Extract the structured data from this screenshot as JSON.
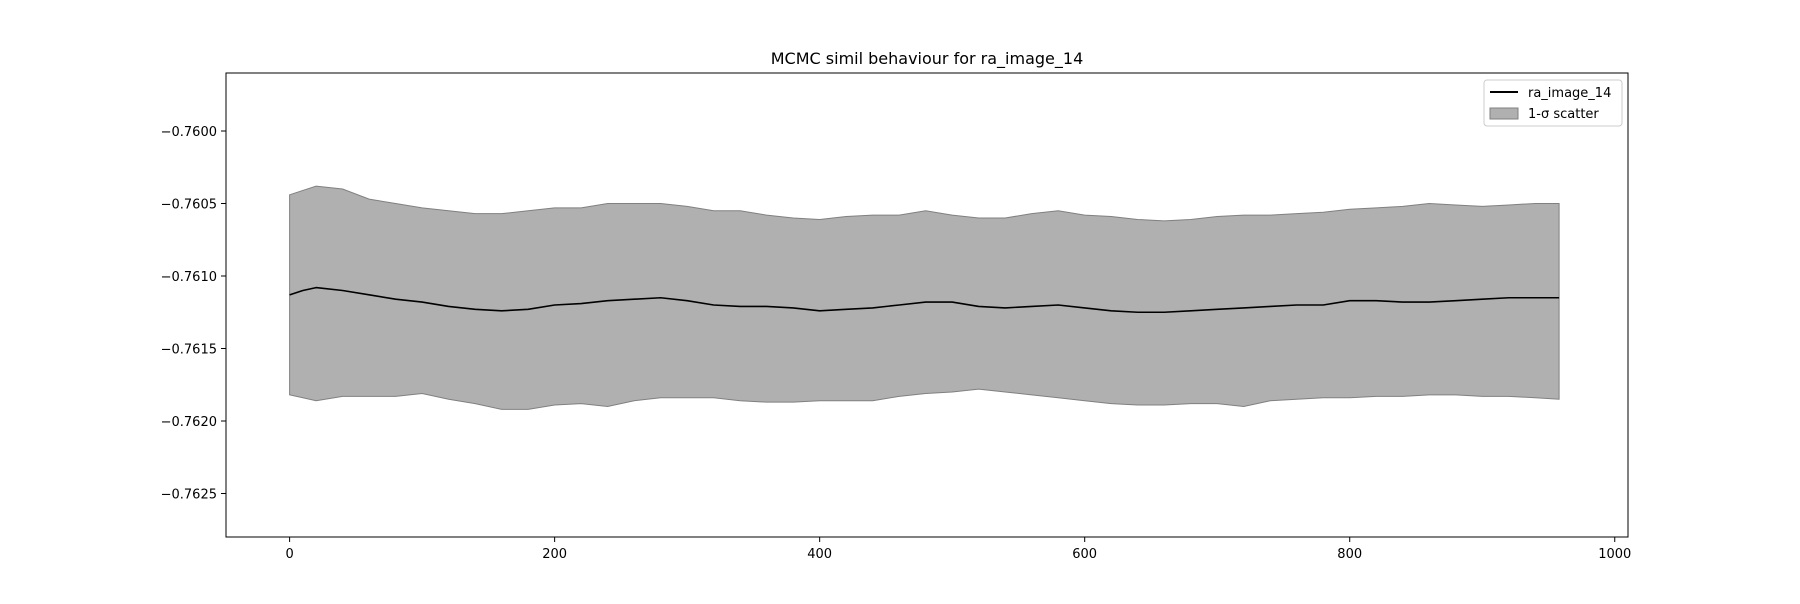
{
  "chart_data": {
    "type": "line",
    "title": "MCMC simil behaviour for ra_image_14",
    "xlabel": "",
    "ylabel": "",
    "xlim": [
      -48,
      1010
    ],
    "ylim": [
      -0.7628,
      -0.7596
    ],
    "x_ticks": [
      0,
      200,
      400,
      600,
      800,
      1000
    ],
    "x_tick_labels": [
      "0",
      "200",
      "400",
      "600",
      "800",
      "1000"
    ],
    "y_ticks": [
      -0.76,
      -0.7605,
      -0.761,
      -0.7615,
      -0.762,
      -0.7625
    ],
    "y_tick_labels": [
      "−0.7600",
      "−0.7605",
      "−0.7610",
      "−0.7615",
      "−0.7620",
      "−0.7625"
    ],
    "grid": false,
    "legend_position": "top-right",
    "series": [
      {
        "name": "ra_image_14",
        "kind": "line",
        "color": "#000000",
        "x": [
          0,
          10,
          20,
          40,
          60,
          80,
          100,
          120,
          140,
          160,
          180,
          200,
          220,
          240,
          260,
          280,
          300,
          320,
          340,
          360,
          380,
          400,
          420,
          440,
          460,
          480,
          500,
          520,
          540,
          560,
          580,
          600,
          620,
          640,
          660,
          680,
          700,
          720,
          740,
          760,
          780,
          800,
          820,
          840,
          860,
          880,
          900,
          920,
          940,
          958
        ],
        "y": [
          -0.76113,
          -0.7611,
          -0.76108,
          -0.7611,
          -0.76113,
          -0.76116,
          -0.76118,
          -0.76121,
          -0.76123,
          -0.76124,
          -0.76123,
          -0.7612,
          -0.76119,
          -0.76117,
          -0.76116,
          -0.76115,
          -0.76117,
          -0.7612,
          -0.76121,
          -0.76121,
          -0.76122,
          -0.76124,
          -0.76123,
          -0.76122,
          -0.7612,
          -0.76118,
          -0.76118,
          -0.76121,
          -0.76122,
          -0.76121,
          -0.7612,
          -0.76122,
          -0.76124,
          -0.76125,
          -0.76125,
          -0.76124,
          -0.76123,
          -0.76122,
          -0.76121,
          -0.7612,
          -0.7612,
          -0.76117,
          -0.76117,
          -0.76118,
          -0.76118,
          -0.76117,
          -0.76116,
          -0.76115,
          -0.76115,
          -0.76115
        ]
      },
      {
        "name": "1-σ scatter",
        "kind": "band",
        "color": "#b0b0b0",
        "edge_color": "#808080",
        "x": [
          0,
          10,
          20,
          40,
          60,
          80,
          100,
          120,
          140,
          160,
          180,
          200,
          220,
          240,
          260,
          280,
          300,
          320,
          340,
          360,
          380,
          400,
          420,
          440,
          460,
          480,
          500,
          520,
          540,
          560,
          580,
          600,
          620,
          640,
          660,
          680,
          700,
          720,
          740,
          760,
          780,
          800,
          820,
          840,
          860,
          880,
          900,
          920,
          940,
          958
        ],
        "upper": [
          -0.76044,
          -0.76041,
          -0.76038,
          -0.7604,
          -0.76047,
          -0.7605,
          -0.76053,
          -0.76055,
          -0.76057,
          -0.76057,
          -0.76055,
          -0.76053,
          -0.76053,
          -0.7605,
          -0.7605,
          -0.7605,
          -0.76052,
          -0.76055,
          -0.76055,
          -0.76058,
          -0.7606,
          -0.76061,
          -0.76059,
          -0.76058,
          -0.76058,
          -0.76055,
          -0.76058,
          -0.7606,
          -0.7606,
          -0.76057,
          -0.76055,
          -0.76058,
          -0.76059,
          -0.76061,
          -0.76062,
          -0.76061,
          -0.76059,
          -0.76058,
          -0.76058,
          -0.76057,
          -0.76056,
          -0.76054,
          -0.76053,
          -0.76052,
          -0.7605,
          -0.76051,
          -0.76052,
          -0.76051,
          -0.7605,
          -0.7605
        ],
        "lower": [
          -0.76182,
          -0.76184,
          -0.76186,
          -0.76183,
          -0.76183,
          -0.76183,
          -0.76181,
          -0.76185,
          -0.76188,
          -0.76192,
          -0.76192,
          -0.76189,
          -0.76188,
          -0.7619,
          -0.76186,
          -0.76184,
          -0.76184,
          -0.76184,
          -0.76186,
          -0.76187,
          -0.76187,
          -0.76186,
          -0.76186,
          -0.76186,
          -0.76183,
          -0.76181,
          -0.7618,
          -0.76178,
          -0.7618,
          -0.76182,
          -0.76184,
          -0.76186,
          -0.76188,
          -0.76189,
          -0.76189,
          -0.76188,
          -0.76188,
          -0.7619,
          -0.76186,
          -0.76185,
          -0.76184,
          -0.76184,
          -0.76183,
          -0.76183,
          -0.76182,
          -0.76182,
          -0.76183,
          -0.76183,
          -0.76184,
          -0.76185
        ]
      }
    ],
    "legend": [
      {
        "label": "ra_image_14",
        "marker": "line",
        "color": "#000000"
      },
      {
        "label": "1-σ scatter",
        "marker": "patch",
        "color": "#b0b0b0",
        "edge_color": "#808080"
      }
    ]
  }
}
